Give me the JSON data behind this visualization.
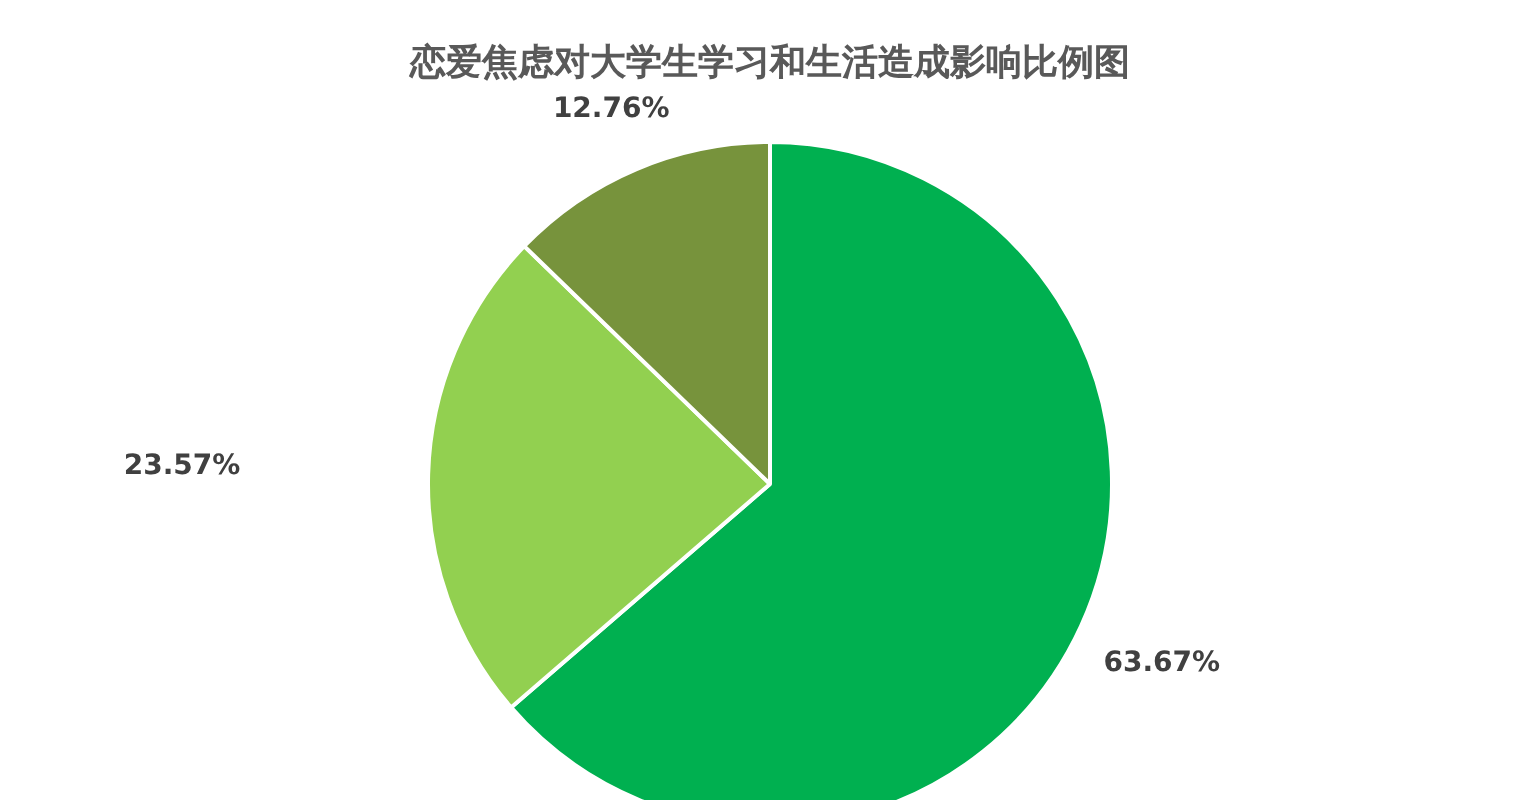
{
  "chart_data": {
    "type": "pie",
    "title": "恋爱焦虑对大学生学习和生活造成影响比例图",
    "categories": [
      null,
      null,
      null
    ],
    "values": [
      63.67,
      23.57,
      12.76
    ],
    "colors": [
      "#00b050",
      "#92d050",
      "#77933c"
    ],
    "value_labels": [
      "63.67%",
      "23.57%",
      "12.76%"
    ]
  }
}
